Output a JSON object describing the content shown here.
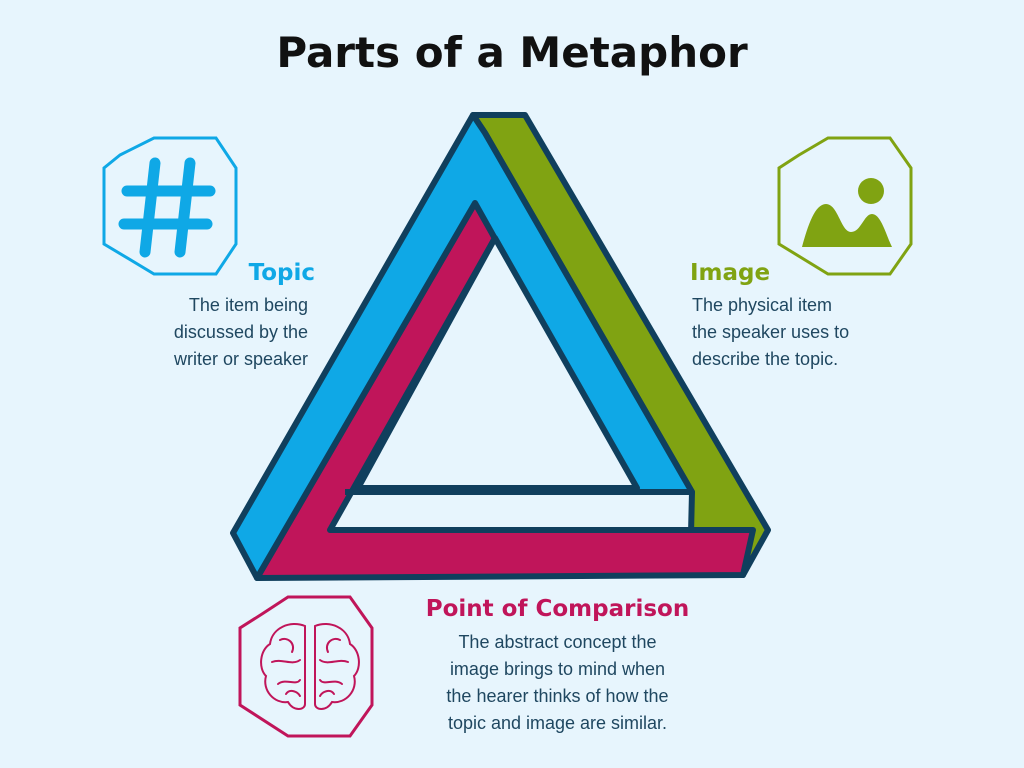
{
  "title": "Parts of a Metaphor",
  "parts": {
    "topic": {
      "heading": "Topic",
      "lines": [
        "The item being",
        "discussed by the",
        "writer or speaker"
      ],
      "color": "#0fa8e6",
      "icon": "hashtag-icon"
    },
    "image": {
      "heading": "Image",
      "lines": [
        "The physical item",
        "the speaker uses to",
        "describe the topic."
      ],
      "color": "#80a312",
      "icon": "picture-icon"
    },
    "point": {
      "heading": "Point of Comparison",
      "lines": [
        "The abstract concept the",
        "image brings to mind when",
        "the hearer thinks of how the",
        "topic and image are similar."
      ],
      "color": "#c0155a",
      "icon": "brain-icon"
    }
  },
  "outline_color": "#103f5d",
  "background": "#e7f5fd"
}
